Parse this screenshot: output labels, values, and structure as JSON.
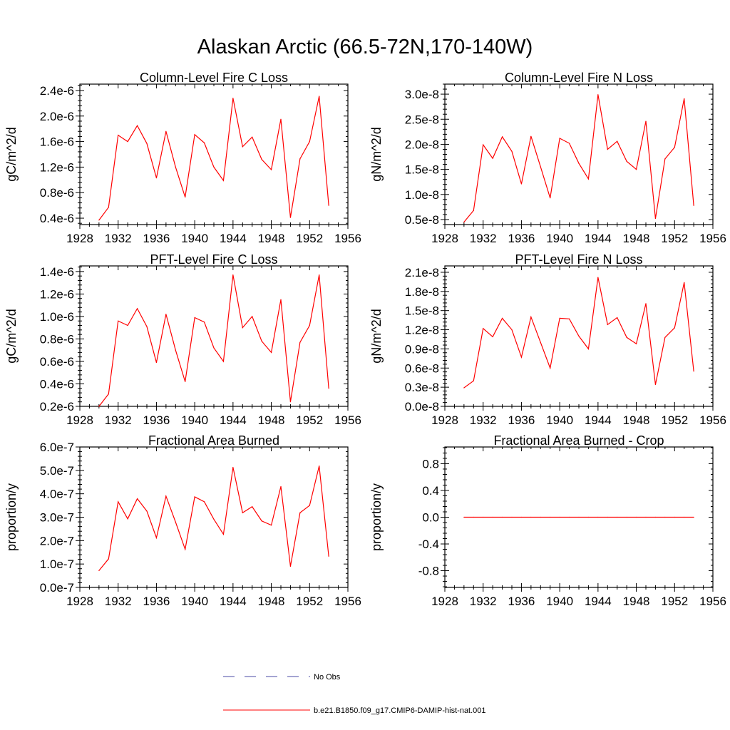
{
  "title": "Alaskan Arctic (66.5-72N,170-140W)",
  "colors": {
    "series": "#ff0000",
    "obs": "#4a4aa6",
    "axis": "#000000"
  },
  "legend": [
    {
      "label": "No Obs",
      "style": "dashed",
      "color": "#4a4aa6"
    },
    {
      "label": "b.e21.B1850.f09_g17.CMIP6-DAMIP-hist-nat.001",
      "style": "solid",
      "color": "#ff0000"
    }
  ],
  "chart_data": [
    {
      "type": "line",
      "title": "Column-Level Fire C Loss",
      "ylabel": "gC/m^2/d",
      "xlim": [
        1928,
        1956
      ],
      "xticks": [
        "1928",
        "1932",
        "1936",
        "1940",
        "1944",
        "1948",
        "1952",
        "1956"
      ],
      "ylim": [
        3e-07,
        2.5e-06
      ],
      "yticks": [
        {
          "v": 4e-07,
          "label": "0.4e-6"
        },
        {
          "v": 8e-07,
          "label": "0.8e-6"
        },
        {
          "v": 1.2e-06,
          "label": "1.2e-6"
        },
        {
          "v": 1.6e-06,
          "label": "1.6e-6"
        },
        {
          "v": 2e-06,
          "label": "2.0e-6"
        },
        {
          "v": 2.4e-06,
          "label": "2.4e-6"
        }
      ],
      "x": [
        1930,
        1931,
        1932,
        1933,
        1934,
        1935,
        1936,
        1937,
        1938,
        1939,
        1940,
        1941,
        1942,
        1943,
        1944,
        1945,
        1946,
        1947,
        1948,
        1949,
        1950,
        1951,
        1952,
        1953,
        1954
      ],
      "series": [
        {
          "name": "b.e21.B1850.f09_g17.CMIP6-DAMIP-hist-nat.001",
          "values": [
            3.7e-07,
            5.7e-07,
            1.7e-06,
            1.6e-06,
            1.85e-06,
            1.57e-06,
            1.03e-06,
            1.76e-06,
            1.2e-06,
            7.3e-07,
            1.71e-06,
            1.58e-06,
            1.2e-06,
            9.9e-07,
            2.28e-06,
            1.52e-06,
            1.67e-06,
            1.32e-06,
            1.16e-06,
            1.95e-06,
            4.1e-07,
            1.33e-06,
            1.6e-06,
            2.31e-06,
            6e-07
          ]
        }
      ]
    },
    {
      "type": "line",
      "title": "Column-Level Fire N Loss",
      "ylabel": "gN/m^2/d",
      "xlim": [
        1928,
        1956
      ],
      "xticks": [
        "1928",
        "1932",
        "1936",
        "1940",
        "1944",
        "1948",
        "1952",
        "1956"
      ],
      "ylim": [
        4e-09,
        3.2e-08
      ],
      "yticks": [
        {
          "v": 5e-09,
          "label": "0.5e-8"
        },
        {
          "v": 1e-08,
          "label": "1.0e-8"
        },
        {
          "v": 1.5e-08,
          "label": "1.5e-8"
        },
        {
          "v": 2e-08,
          "label": "2.0e-8"
        },
        {
          "v": 2.5e-08,
          "label": "2.5e-8"
        },
        {
          "v": 3e-08,
          "label": "3.0e-8"
        }
      ],
      "x": [
        1930,
        1931,
        1932,
        1933,
        1934,
        1935,
        1936,
        1937,
        1938,
        1939,
        1940,
        1941,
        1942,
        1943,
        1944,
        1945,
        1946,
        1947,
        1948,
        1949,
        1950,
        1951,
        1952,
        1953,
        1954
      ],
      "series": [
        {
          "name": "b.e21.B1850.f09_g17.CMIP6-DAMIP-hist-nat.001",
          "values": [
            4.5e-09,
            6.8e-09,
            1.99e-08,
            1.72e-08,
            2.15e-08,
            1.86e-08,
            1.21e-08,
            2.16e-08,
            1.55e-08,
            9.3e-09,
            2.12e-08,
            2.02e-08,
            1.62e-08,
            1.31e-08,
            2.99e-08,
            1.9e-08,
            2.06e-08,
            1.66e-08,
            1.5e-08,
            2.46e-08,
            5.2e-09,
            1.71e-08,
            1.94e-08,
            2.91e-08,
            7.8e-09
          ]
        }
      ]
    },
    {
      "type": "line",
      "title": "PFT-Level Fire C Loss",
      "ylabel": "gC/m^2/d",
      "xlim": [
        1928,
        1956
      ],
      "xticks": [
        "1928",
        "1932",
        "1936",
        "1940",
        "1944",
        "1948",
        "1952",
        "1956"
      ],
      "ylim": [
        2e-07,
        1.45e-06
      ],
      "yticks": [
        {
          "v": 2e-07,
          "label": "0.2e-6"
        },
        {
          "v": 4e-07,
          "label": "0.4e-6"
        },
        {
          "v": 6e-07,
          "label": "0.6e-6"
        },
        {
          "v": 8e-07,
          "label": "0.8e-6"
        },
        {
          "v": 1e-06,
          "label": "1.0e-6"
        },
        {
          "v": 1.2e-06,
          "label": "1.2e-6"
        },
        {
          "v": 1.4e-06,
          "label": "1.4e-6"
        }
      ],
      "x": [
        1930,
        1931,
        1932,
        1933,
        1934,
        1935,
        1936,
        1937,
        1938,
        1939,
        1940,
        1941,
        1942,
        1943,
        1944,
        1945,
        1946,
        1947,
        1948,
        1949,
        1950,
        1951,
        1952,
        1953,
        1954
      ],
      "series": [
        {
          "name": "b.e21.B1850.f09_g17.CMIP6-DAMIP-hist-nat.001",
          "values": [
            2e-07,
            3.1e-07,
            9.6e-07,
            9.2e-07,
            1.07e-06,
            9.1e-07,
            5.9e-07,
            1.02e-06,
            7e-07,
            4.2e-07,
            9.9e-07,
            9.5e-07,
            7.2e-07,
            6e-07,
            1.37e-06,
            9e-07,
            1e-06,
            7.8e-07,
            6.8e-07,
            1.15e-06,
            2.4e-07,
            7.7e-07,
            9.2e-07,
            1.37e-06,
            3.6e-07
          ]
        }
      ]
    },
    {
      "type": "line",
      "title": "PFT-Level Fire N Loss",
      "ylabel": "gN/m^2/d",
      "xlim": [
        1928,
        1956
      ],
      "xticks": [
        "1928",
        "1932",
        "1936",
        "1940",
        "1944",
        "1948",
        "1952",
        "1956"
      ],
      "ylim": [
        0.0,
        2.2e-08
      ],
      "yticks": [
        {
          "v": 0.0,
          "label": "0.0e-8"
        },
        {
          "v": 3e-09,
          "label": "0.3e-8"
        },
        {
          "v": 6e-09,
          "label": "0.6e-8"
        },
        {
          "v": 9e-09,
          "label": "0.9e-8"
        },
        {
          "v": 1.2e-08,
          "label": "1.2e-8"
        },
        {
          "v": 1.5e-08,
          "label": "1.5e-8"
        },
        {
          "v": 1.8e-08,
          "label": "1.8e-8"
        },
        {
          "v": 2.1e-08,
          "label": "2.1e-8"
        }
      ],
      "x": [
        1930,
        1931,
        1932,
        1933,
        1934,
        1935,
        1936,
        1937,
        1938,
        1939,
        1940,
        1941,
        1942,
        1943,
        1944,
        1945,
        1946,
        1947,
        1948,
        1949,
        1950,
        1951,
        1952,
        1953,
        1954
      ],
      "series": [
        {
          "name": "b.e21.B1850.f09_g17.CMIP6-DAMIP-hist-nat.001",
          "values": [
            2.9e-09,
            4e-09,
            1.22e-08,
            1.09e-08,
            1.38e-08,
            1.2e-08,
            7.7e-09,
            1.4e-08,
            1e-08,
            6e-09,
            1.38e-08,
            1.37e-08,
            1.1e-08,
            9e-09,
            2.02e-08,
            1.28e-08,
            1.39e-08,
            1.08e-08,
            9.8e-09,
            1.61e-08,
            3.4e-09,
            1.08e-08,
            1.23e-08,
            1.94e-08,
            5.5e-09
          ]
        }
      ]
    },
    {
      "type": "line",
      "title": "Fractional Area Burned",
      "ylabel": "proportion/y",
      "xlim": [
        1928,
        1956
      ],
      "xticks": [
        "1928",
        "1932",
        "1936",
        "1940",
        "1944",
        "1948",
        "1952",
        "1956"
      ],
      "ylim": [
        0.0,
        6e-07
      ],
      "yticks": [
        {
          "v": 0.0,
          "label": "0.0e-7"
        },
        {
          "v": 1e-07,
          "label": "1.0e-7"
        },
        {
          "v": 2e-07,
          "label": "2.0e-7"
        },
        {
          "v": 3e-07,
          "label": "3.0e-7"
        },
        {
          "v": 4e-07,
          "label": "4.0e-7"
        },
        {
          "v": 5e-07,
          "label": "5.0e-7"
        },
        {
          "v": 6e-07,
          "label": "6.0e-7"
        }
      ],
      "x": [
        1930,
        1931,
        1932,
        1933,
        1934,
        1935,
        1936,
        1937,
        1938,
        1939,
        1940,
        1941,
        1942,
        1943,
        1944,
        1945,
        1946,
        1947,
        1948,
        1949,
        1950,
        1951,
        1952,
        1953,
        1954
      ],
      "series": [
        {
          "name": "b.e21.B1850.f09_g17.CMIP6-DAMIP-hist-nat.001",
          "values": [
            7.2e-08,
            1.22e-07,
            3.66e-07,
            2.93e-07,
            3.79e-07,
            3.26e-07,
            2.12e-07,
            3.9e-07,
            2.79e-07,
            1.63e-07,
            3.87e-07,
            3.66e-07,
            2.91e-07,
            2.27e-07,
            5.13e-07,
            3.19e-07,
            3.45e-07,
            2.84e-07,
            2.66e-07,
            4.31e-07,
            9e-08,
            3.19e-07,
            3.5e-07,
            5.19e-07,
            1.33e-07
          ]
        }
      ]
    },
    {
      "type": "line",
      "title": "Fractional Area Burned - Crop",
      "ylabel": "proportion/y",
      "xlim": [
        1928,
        1956
      ],
      "xticks": [
        "1928",
        "1932",
        "1936",
        "1940",
        "1944",
        "1948",
        "1952",
        "1956"
      ],
      "ylim": [
        -1.05,
        1.05
      ],
      "yticks": [
        {
          "v": -0.8,
          "label": "-0.8"
        },
        {
          "v": -0.4,
          "label": "-0.4"
        },
        {
          "v": 0.0,
          "label": "0.0"
        },
        {
          "v": 0.4,
          "label": "0.4"
        },
        {
          "v": 0.8,
          "label": "0.8"
        }
      ],
      "x": [
        1930,
        1931,
        1932,
        1933,
        1934,
        1935,
        1936,
        1937,
        1938,
        1939,
        1940,
        1941,
        1942,
        1943,
        1944,
        1945,
        1946,
        1947,
        1948,
        1949,
        1950,
        1951,
        1952,
        1953,
        1954
      ],
      "series": [
        {
          "name": "b.e21.B1850.f09_g17.CMIP6-DAMIP-hist-nat.001",
          "values": [
            0,
            0,
            0,
            0,
            0,
            0,
            0,
            0,
            0,
            0,
            0,
            0,
            0,
            0,
            0,
            0,
            0,
            0,
            0,
            0,
            0,
            0,
            0,
            0,
            0
          ]
        }
      ]
    }
  ]
}
